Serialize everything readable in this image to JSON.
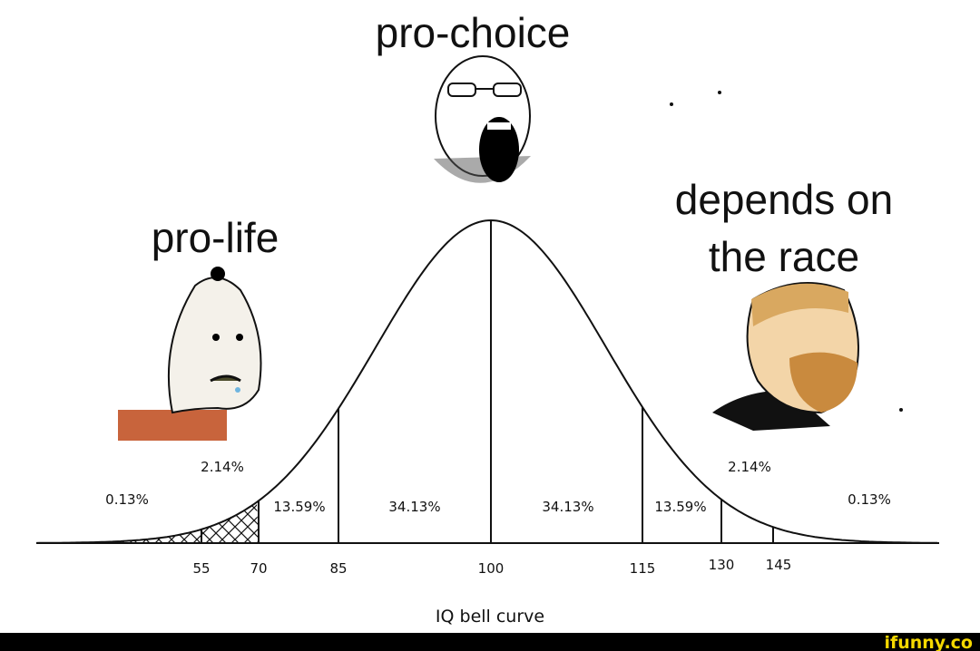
{
  "captions": {
    "center": "pro-choice",
    "left": "pro-life",
    "right": [
      "depends on",
      "the race"
    ]
  },
  "percentages": [
    "0.13%",
    "2.14%",
    "13.59%",
    "34.13%",
    "34.13%",
    "13.59%",
    "2.14%",
    "0.13%"
  ],
  "iq_ticks": [
    "55",
    "70",
    "85",
    "100",
    "115",
    "130",
    "145"
  ],
  "axis_title": "IQ bell curve",
  "watermark": "ifunny.co"
}
